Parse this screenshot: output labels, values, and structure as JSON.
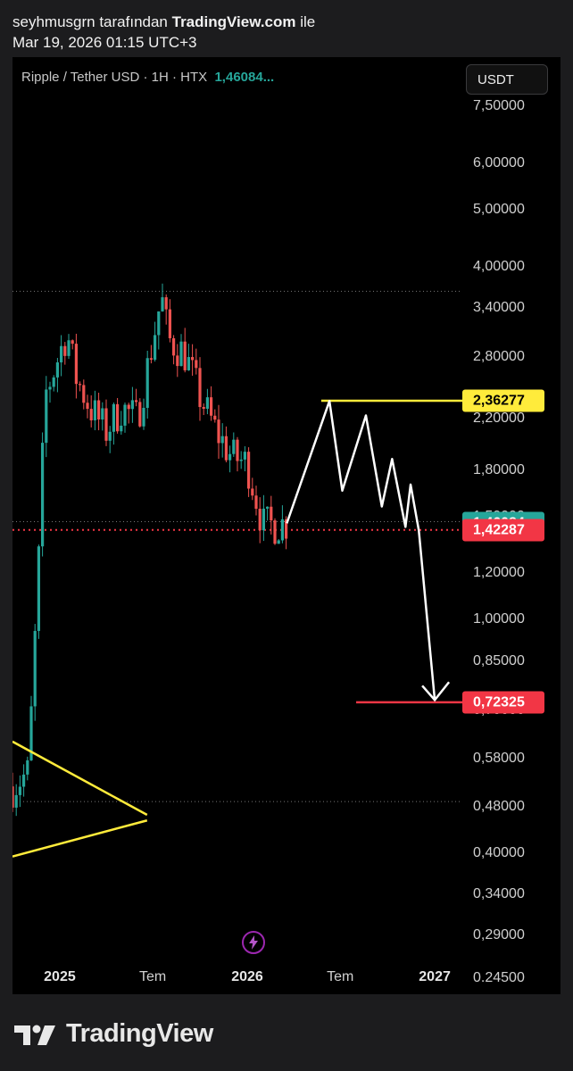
{
  "header": {
    "author": "seyhmusgrn",
    "mid_text": " tarafından ",
    "site": "TradingView.com",
    "suffix": " ile",
    "timestamp": "Mar 19, 2026 01:15 UTC+3"
  },
  "legend": {
    "symbol": "Ripple / Tether USD · 1H · HTX",
    "price": "1,46084..."
  },
  "currency_button": "USDT",
  "footer": {
    "brand": "TradingView",
    "logo_icon": "tradingview-logo-icon"
  },
  "bolt_icon": "lightning-icon",
  "colors": {
    "up": "#26a69a",
    "down": "#ef5350",
    "yellow": "#ffeb3b",
    "red_level": "#f23645",
    "current_tag": "#26a69a"
  },
  "chart_data": {
    "type": "candlestick",
    "scale": "log",
    "ylim": [
      0.23,
      9.1
    ],
    "y_ticks": [
      "7,50000",
      "6,00000",
      "5,00000",
      "4,00000",
      "3,40000",
      "2,80000",
      "2,20000",
      "1,80000",
      "1,50000",
      "1,20000",
      "1,00000",
      "0,85000",
      "0,70000",
      "0,58000",
      "0,48000",
      "0,40000",
      "0,34000",
      "0,29000",
      "0.24500"
    ],
    "y_tick_values": [
      7.5,
      6.0,
      5.0,
      4.0,
      3.4,
      2.8,
      2.2,
      1.8,
      1.5,
      1.2,
      1.0,
      0.85,
      0.7,
      0.58,
      0.48,
      0.4,
      0.34,
      0.29,
      0.245
    ],
    "x_ticks": [
      {
        "label": "2025",
        "date": "2025-01-01",
        "bold": true
      },
      {
        "label": "Tem",
        "date": "2025-07-01",
        "bold": false
      },
      {
        "label": "2026",
        "date": "2026-01-01",
        "bold": true
      },
      {
        "label": "Tem",
        "date": "2026-07-01",
        "bold": false
      },
      {
        "label": "2027",
        "date": "2027-01-01",
        "bold": true
      }
    ],
    "price_tags": [
      {
        "label": "2,36277",
        "value": 2.36277,
        "bg": "#ffeb3b",
        "fg": "#000"
      },
      {
        "label": "1,46084",
        "value": 1.46084,
        "bg": "#26a69a",
        "fg": "#fff"
      },
      {
        "label": "1,42287",
        "value": 1.42287,
        "bg": "#f23645",
        "fg": "#fff"
      },
      {
        "label": "0,72325",
        "value": 0.72325,
        "bg": "#f23645",
        "fg": "#fff"
      }
    ],
    "dotted_levels": [
      3.63,
      1.47,
      0.49
    ],
    "red_dotted_level": 1.42287,
    "candles_monthly_close": [
      {
        "date": "2024-10-01",
        "close": 0.52
      },
      {
        "date": "2024-11-01",
        "close": 0.55
      },
      {
        "date": "2024-11-20",
        "close": 1.2
      },
      {
        "date": "2024-12-03",
        "close": 2.4
      },
      {
        "date": "2025-01-15",
        "close": 3.1
      },
      {
        "date": "2025-02-01",
        "close": 2.6
      },
      {
        "date": "2025-03-01",
        "close": 2.3
      },
      {
        "date": "2025-04-01",
        "close": 2.1
      },
      {
        "date": "2025-05-01",
        "close": 2.3
      },
      {
        "date": "2025-06-01",
        "close": 2.2
      },
      {
        "date": "2025-07-18",
        "close": 3.55
      },
      {
        "date": "2025-08-01",
        "close": 3.0
      },
      {
        "date": "2025-09-01",
        "close": 2.85
      },
      {
        "date": "2025-10-01",
        "close": 2.4
      },
      {
        "date": "2025-11-01",
        "close": 2.1
      },
      {
        "date": "2025-12-01",
        "close": 1.9
      },
      {
        "date": "2026-01-01",
        "close": 1.85
      },
      {
        "date": "2026-02-01",
        "close": 1.45
      },
      {
        "date": "2026-03-19",
        "close": 1.46084
      }
    ],
    "projection_path": [
      {
        "date": "2026-03-19",
        "value": 1.46
      },
      {
        "date": "2026-06-10",
        "value": 2.36
      },
      {
        "date": "2026-07-05",
        "value": 1.66
      },
      {
        "date": "2026-08-20",
        "value": 2.23
      },
      {
        "date": "2026-09-20",
        "value": 1.56
      },
      {
        "date": "2026-10-10",
        "value": 1.88
      },
      {
        "date": "2026-11-05",
        "value": 1.44
      },
      {
        "date": "2026-11-15",
        "value": 1.7
      },
      {
        "date": "2026-12-01",
        "value": 1.42
      },
      {
        "date": "2027-01-01",
        "value": 0.73
      }
    ],
    "triangle": {
      "upper": [
        {
          "date": "2024-10-01",
          "value": 0.62
        },
        {
          "date": "2025-06-20",
          "value": 0.465
        }
      ],
      "lower": [
        {
          "date": "2024-10-01",
          "value": 0.395
        },
        {
          "date": "2025-06-20",
          "value": 0.455
        }
      ]
    }
  }
}
